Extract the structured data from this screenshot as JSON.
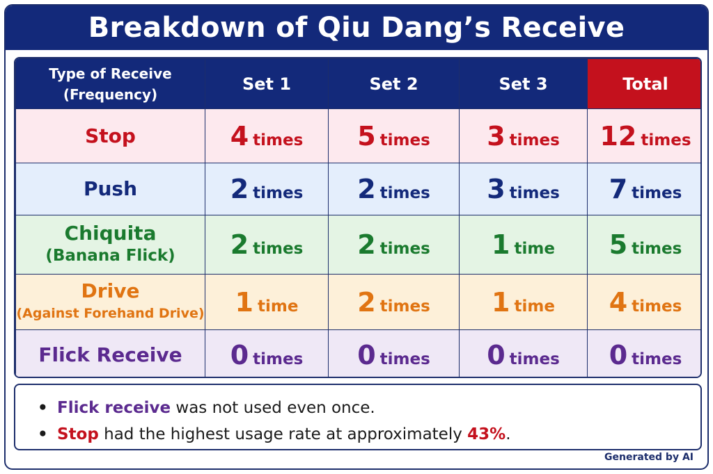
{
  "title": "Breakdown of Qiu Dang’s Receive",
  "header": {
    "type_line1": "Type of Receive",
    "type_line2": "(Frequency)",
    "set1": "Set 1",
    "set2": "Set 2",
    "set3": "Set 3",
    "total": "Total"
  },
  "colors": {
    "navy": "#13297a",
    "total_header": "#c4111d",
    "stop": "#c4111d",
    "push": "#13297a",
    "chiquita": "#1a7a2e",
    "drive": "#e07412",
    "flick": "#5b2a8f"
  },
  "rows": [
    {
      "name_line1": "Stop",
      "name_line2": "",
      "row_bg": "#fde9ee",
      "text_color": "#c4111d",
      "cells": [
        {
          "num": "4",
          "unit": "times"
        },
        {
          "num": "5",
          "unit": "times"
        },
        {
          "num": "3",
          "unit": "times"
        },
        {
          "num": "12",
          "unit": "times"
        }
      ]
    },
    {
      "name_line1": "Push",
      "name_line2": "",
      "row_bg": "#e4eefc",
      "text_color": "#13297a",
      "cells": [
        {
          "num": "2",
          "unit": "times"
        },
        {
          "num": "2",
          "unit": "times"
        },
        {
          "num": "3",
          "unit": "times"
        },
        {
          "num": "7",
          "unit": "times"
        }
      ]
    },
    {
      "name_line1": "Chiquita",
      "name_line2": "(Banana Flick)",
      "row_bg": "#e4f4e4",
      "text_color": "#1a7a2e",
      "cells": [
        {
          "num": "2",
          "unit": "times"
        },
        {
          "num": "2",
          "unit": "times"
        },
        {
          "num": "1",
          "unit": "time"
        },
        {
          "num": "5",
          "unit": "times"
        }
      ]
    },
    {
      "name_line1": "Drive",
      "name_line2": "(Against Forehand Drive)",
      "row_bg": "#fdf0d9",
      "text_color": "#e07412",
      "cells": [
        {
          "num": "1",
          "unit": "time"
        },
        {
          "num": "2",
          "unit": "times"
        },
        {
          "num": "1",
          "unit": "time"
        },
        {
          "num": "4",
          "unit": "times"
        }
      ]
    },
    {
      "name_line1": "Flick Receive",
      "name_line2": "",
      "row_bg": "#efe8f6",
      "text_color": "#5b2a8f",
      "cells": [
        {
          "num": "0",
          "unit": "times"
        },
        {
          "num": "0",
          "unit": "times"
        },
        {
          "num": "0",
          "unit": "times"
        },
        {
          "num": "0",
          "unit": "times"
        }
      ]
    }
  ],
  "notes": [
    {
      "bullet": "•",
      "highlight": "Flick receive",
      "highlight_color": "#5b2a8f",
      "rest": " was not used even once.",
      "percent": "",
      "end": ""
    },
    {
      "bullet": "•",
      "highlight": "Stop",
      "highlight_color": "#c4111d",
      "rest": " had the highest usage rate at approximately ",
      "percent": "43%",
      "end": "."
    }
  ],
  "credit": "Generated by AI"
}
